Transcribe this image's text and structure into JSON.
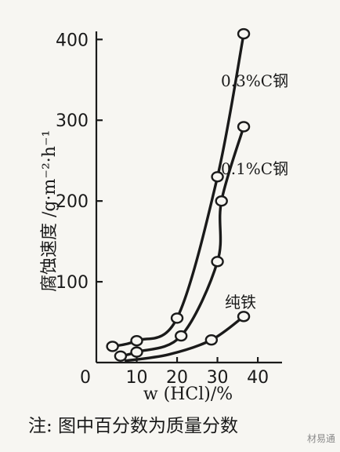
{
  "chart_data": {
    "type": "line",
    "xlabel": "w (HCl)/%",
    "ylabel": "腐蚀速度 /g·m⁻²·h⁻¹",
    "xlim": [
      0,
      46
    ],
    "ylim": [
      0,
      410
    ],
    "xticks": [
      0,
      10,
      20,
      30,
      40
    ],
    "xtick_labels": [
      "0",
      "10",
      "20",
      "30",
      "40"
    ],
    "yticks": [
      100,
      200,
      300,
      400
    ],
    "series": [
      {
        "name": "0.3%C钢",
        "x": [
          4,
          10,
          20,
          30,
          36.5
        ],
        "y": [
          20,
          27,
          55,
          230,
          407
        ]
      },
      {
        "name": "0.1%C钢",
        "x": [
          6,
          10,
          21,
          30,
          31,
          36.5
        ],
        "y": [
          8,
          13,
          33,
          125,
          200,
          292
        ]
      },
      {
        "name": "纯铁",
        "x": [
          28.5,
          36.5
        ],
        "y": [
          28,
          57
        ]
      }
    ],
    "grid": false
  },
  "footnote": "注: 图中百分数为质量分数",
  "watermark": "材易通"
}
